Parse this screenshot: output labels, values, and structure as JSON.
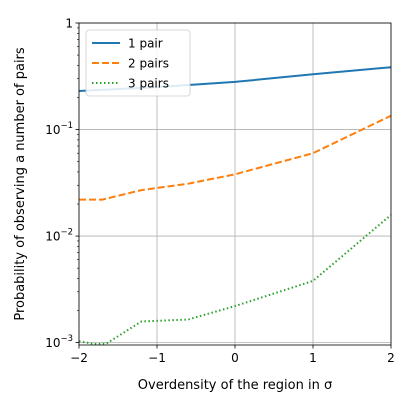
{
  "chart_data": {
    "type": "line",
    "xlabel": "Overdensity of the region in σ",
    "ylabel": "Probability of observing a number of pairs",
    "xlim": [
      -2,
      2
    ],
    "ylim": [
      0.00095,
      1
    ],
    "yscale": "log",
    "grid": true,
    "legend_position": "top-left",
    "x_ticks": [
      -2,
      -1,
      0,
      1,
      2
    ],
    "x_tick_labels": [
      "−2",
      "−1",
      "0",
      "1",
      "2"
    ],
    "y_ticks": [
      0.001,
      0.01,
      0.1,
      1
    ],
    "series": [
      {
        "name": "1 pair",
        "color": "#1f77b4",
        "style": "solid",
        "x": [
          -2,
          -1,
          0,
          1,
          2
        ],
        "y": [
          0.23,
          0.25,
          0.28,
          0.33,
          0.385
        ]
      },
      {
        "name": "2 pairs",
        "color": "#ff7f0e",
        "style": "dashed",
        "x": [
          -2,
          -1.7,
          -1.2,
          -0.6,
          0,
          1,
          2
        ],
        "y": [
          0.022,
          0.022,
          0.027,
          0.031,
          0.038,
          0.06,
          0.135
        ]
      },
      {
        "name": "3 pairs",
        "color": "#2ca02c",
        "style": "dotted",
        "x": [
          -2,
          -1.8,
          -1.65,
          -1.2,
          -0.6,
          0,
          1,
          2
        ],
        "y": [
          0.00103,
          0.00097,
          0.00098,
          0.00158,
          0.00165,
          0.0022,
          0.0038,
          0.0158
        ]
      }
    ]
  }
}
